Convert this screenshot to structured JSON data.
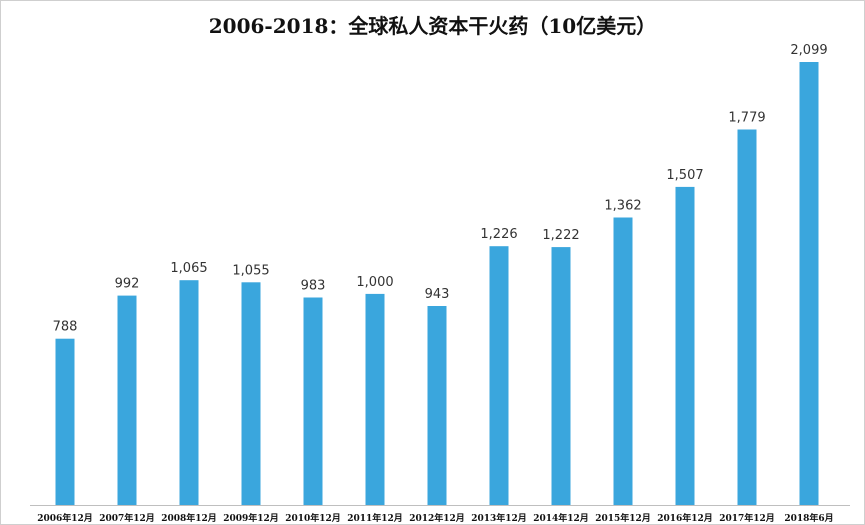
{
  "chart_data": {
    "type": "bar",
    "title": "2006-2018：全球私人资本干火药（10亿美元）",
    "categories": [
      "2006年12月",
      "2007年12月",
      "2008年12月",
      "2009年12月",
      "2010年12月",
      "2011年12月",
      "2012年12月",
      "2013年12月",
      "2014年12月",
      "2015年12月",
      "2016年12月",
      "2017年12月",
      "2018年6月"
    ],
    "values": [
      788,
      992,
      1065,
      1055,
      983,
      1000,
      943,
      1226,
      1222,
      1362,
      1507,
      1779,
      2099
    ],
    "value_labels": [
      "788",
      "992",
      "1,065",
      "1,055",
      "983",
      "1,000",
      "943",
      "1,226",
      "1,222",
      "1,362",
      "1,507",
      "1,779",
      "2,099"
    ],
    "xlabel": "",
    "ylabel": "",
    "ylim": [
      0,
      2200
    ],
    "grid": false,
    "legend": "none",
    "bar_color": "#3aa6dd",
    "axis_color": "#bfbfbf"
  }
}
